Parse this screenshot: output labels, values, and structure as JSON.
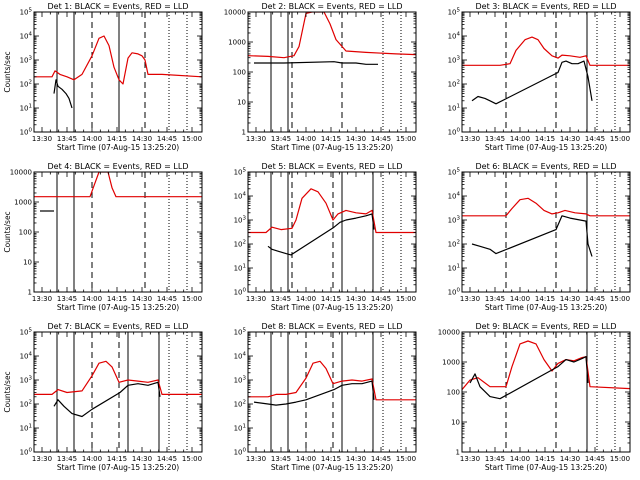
{
  "x_label": "Start Time (07-Aug-15 13:25:20)",
  "x_ticks": [
    "13:30",
    "13:45",
    "14:00",
    "14:15",
    "14:30",
    "14:45",
    "15:00"
  ],
  "x_tick_hours": [
    13.5,
    13.75,
    14.0,
    14.25,
    14.5,
    14.75,
    15.0
  ],
  "colors": {
    "events": "#000000",
    "lld": "#e00000"
  },
  "panels_layout": "3x3 grid",
  "chart_data": [
    {
      "type": "line",
      "title": "Det 1: BLACK = Events, RED = LLD",
      "ylabel": "Counts/sec",
      "y_scale": "log",
      "ylim": [
        1,
        100000
      ],
      "y_ticks": [
        "10^0",
        "10^1",
        "10^2",
        "10^3",
        "10^4",
        "10^5"
      ],
      "y_tick_values": [
        1,
        10,
        100,
        1000,
        10000,
        100000
      ],
      "xlim": [
        13.42,
        15.1
      ],
      "solid_lines": [
        13.65,
        13.82,
        14.27
      ],
      "dashed_lines": [
        14.0,
        14.53
      ],
      "dotted_lines": [
        14.77,
        14.95
      ],
      "events": [
        [
          13.62,
          40
        ],
        [
          13.64,
          150
        ],
        [
          13.66,
          80
        ],
        [
          13.7,
          60
        ],
        [
          13.74,
          40
        ],
        [
          13.77,
          25
        ],
        [
          13.8,
          10
        ]
      ],
      "lld": [
        [
          13.42,
          200
        ],
        [
          13.6,
          200
        ],
        [
          13.63,
          350
        ],
        [
          13.68,
          250
        ],
        [
          13.75,
          200
        ],
        [
          13.82,
          150
        ],
        [
          13.9,
          250
        ],
        [
          14.0,
          1500
        ],
        [
          14.07,
          8000
        ],
        [
          14.12,
          10000
        ],
        [
          14.17,
          4000
        ],
        [
          14.22,
          500
        ],
        [
          14.27,
          150
        ],
        [
          14.31,
          100
        ],
        [
          14.36,
          1200
        ],
        [
          14.4,
          2000
        ],
        [
          14.46,
          1800
        ],
        [
          14.5,
          1500
        ],
        [
          14.53,
          1000
        ],
        [
          14.56,
          250
        ],
        [
          14.7,
          250
        ],
        [
          15.1,
          200
        ]
      ]
    },
    {
      "type": "line",
      "title": "Det 2: BLACK = Events, RED = LLD",
      "ylabel": "",
      "y_scale": "log",
      "ylim": [
        1,
        10000
      ],
      "y_ticks": [
        "1",
        "10",
        "100",
        "1000",
        "10000"
      ],
      "y_tick_values": [
        1,
        10,
        100,
        1000,
        10000
      ],
      "xlim": [
        13.42,
        15.1
      ],
      "solid_lines": [
        13.65,
        13.82
      ],
      "dashed_lines": [
        13.86,
        14.36
      ],
      "dotted_lines": [
        14.77,
        14.95
      ],
      "events": [
        [
          13.48,
          200
        ],
        [
          13.78,
          200
        ],
        [
          14.28,
          220
        ],
        [
          14.36,
          200
        ],
        [
          14.5,
          200
        ],
        [
          14.6,
          180
        ],
        [
          14.72,
          180
        ]
      ],
      "lld": [
        [
          13.42,
          350
        ],
        [
          13.62,
          330
        ],
        [
          13.78,
          300
        ],
        [
          13.88,
          350
        ],
        [
          13.93,
          700
        ],
        [
          14.0,
          9000
        ],
        [
          14.06,
          10000
        ],
        [
          14.18,
          10000
        ],
        [
          14.24,
          4000
        ],
        [
          14.3,
          1200
        ],
        [
          14.4,
          500
        ],
        [
          14.6,
          450
        ],
        [
          14.9,
          400
        ],
        [
          15.1,
          380
        ]
      ]
    },
    {
      "type": "line",
      "title": "Det 3: BLACK = Events, RED = LLD",
      "ylabel": "",
      "y_scale": "log",
      "ylim": [
        1,
        100000
      ],
      "y_ticks": [
        "10^0",
        "10^1",
        "10^2",
        "10^3",
        "10^4",
        "10^5"
      ],
      "y_tick_values": [
        1,
        10,
        100,
        1000,
        10000,
        100000
      ],
      "xlim": [
        13.42,
        15.1
      ],
      "solid_lines": [
        14.67
      ],
      "dashed_lines": [
        13.86,
        14.36
      ],
      "dotted_lines": [
        14.77,
        14.95
      ],
      "events": [
        [
          13.52,
          20
        ],
        [
          13.58,
          30
        ],
        [
          13.65,
          25
        ],
        [
          13.7,
          20
        ],
        [
          13.76,
          15
        ],
        [
          14.38,
          300
        ],
        [
          14.42,
          800
        ],
        [
          14.46,
          900
        ],
        [
          14.52,
          700
        ],
        [
          14.58,
          700
        ],
        [
          14.64,
          900
        ],
        [
          14.68,
          200
        ],
        [
          14.72,
          20
        ]
      ],
      "lld": [
        [
          13.42,
          600
        ],
        [
          13.8,
          600
        ],
        [
          13.9,
          700
        ],
        [
          13.96,
          2500
        ],
        [
          14.05,
          7000
        ],
        [
          14.12,
          9000
        ],
        [
          14.18,
          7000
        ],
        [
          14.24,
          3000
        ],
        [
          14.32,
          1500
        ],
        [
          14.38,
          1200
        ],
        [
          14.42,
          1600
        ],
        [
          14.5,
          1500
        ],
        [
          14.6,
          1300
        ],
        [
          14.66,
          1500
        ],
        [
          14.7,
          600
        ],
        [
          15.1,
          600
        ]
      ]
    },
    {
      "type": "line",
      "title": "Det 4: BLACK = Events, RED = LLD",
      "ylabel": "Counts/sec",
      "y_scale": "log",
      "ylim": [
        1,
        10000
      ],
      "y_ticks": [
        "1",
        "10",
        "100",
        "1000",
        "10000"
      ],
      "y_tick_values": [
        1,
        10,
        100,
        1000,
        10000
      ],
      "xlim": [
        13.42,
        15.1
      ],
      "solid_lines": [
        13.65,
        13.82
      ],
      "dashed_lines": [
        14.0,
        14.53
      ],
      "dotted_lines": [
        14.77,
        14.95
      ],
      "events": [
        [
          13.48,
          500
        ],
        [
          13.62,
          500
        ]
      ],
      "lld": [
        [
          13.42,
          1500
        ],
        [
          13.98,
          1500
        ],
        [
          14.02,
          3500
        ],
        [
          14.07,
          10000
        ],
        [
          14.16,
          10000
        ],
        [
          14.2,
          3000
        ],
        [
          14.24,
          1500
        ],
        [
          15.1,
          1500
        ]
      ]
    },
    {
      "type": "line",
      "title": "Det 5: BLACK = Events, RED = LLD",
      "ylabel": "",
      "y_scale": "log",
      "ylim": [
        1,
        100000
      ],
      "y_ticks": [
        "10^0",
        "10^1",
        "10^2",
        "10^3",
        "10^4",
        "10^5"
      ],
      "y_tick_values": [
        1,
        10,
        100,
        1000,
        10000,
        100000
      ],
      "xlim": [
        13.42,
        15.1
      ],
      "solid_lines": [
        13.65,
        13.82,
        14.36,
        14.67
      ],
      "dashed_lines": [
        13.86,
        14.27
      ],
      "dotted_lines": [
        14.77,
        14.95
      ],
      "events": [
        [
          13.62,
          80
        ],
        [
          13.66,
          60
        ],
        [
          13.72,
          50
        ],
        [
          13.8,
          40
        ],
        [
          13.85,
          35
        ],
        [
          14.28,
          500
        ],
        [
          14.34,
          800
        ],
        [
          14.4,
          1000
        ],
        [
          14.5,
          1200
        ],
        [
          14.6,
          1500
        ],
        [
          14.66,
          1800
        ],
        [
          14.68,
          400
        ]
      ],
      "lld": [
        [
          13.42,
          300
        ],
        [
          13.6,
          300
        ],
        [
          13.66,
          500
        ],
        [
          13.75,
          400
        ],
        [
          13.86,
          450
        ],
        [
          13.9,
          1000
        ],
        [
          13.96,
          8000
        ],
        [
          14.05,
          20000
        ],
        [
          14.12,
          15000
        ],
        [
          14.2,
          5000
        ],
        [
          14.27,
          1000
        ],
        [
          14.32,
          1800
        ],
        [
          14.4,
          2500
        ],
        [
          14.5,
          2000
        ],
        [
          14.6,
          1800
        ],
        [
          14.66,
          2500
        ],
        [
          14.7,
          300
        ],
        [
          15.1,
          300
        ]
      ]
    },
    {
      "type": "line",
      "title": "Det 6: BLACK = Events, RED = LLD",
      "ylabel": "",
      "y_scale": "log",
      "ylim": [
        1,
        100000
      ],
      "y_ticks": [
        "10^0",
        "10^1",
        "10^2",
        "10^3",
        "10^4",
        "10^5"
      ],
      "y_tick_values": [
        1,
        10,
        100,
        1000,
        10000,
        100000
      ],
      "xlim": [
        13.42,
        15.1
      ],
      "solid_lines": [
        14.67
      ],
      "dashed_lines": [
        13.86,
        14.36
      ],
      "dotted_lines": [
        14.77,
        14.95
      ],
      "events": [
        [
          13.52,
          100
        ],
        [
          13.6,
          80
        ],
        [
          13.7,
          60
        ],
        [
          13.76,
          40
        ],
        [
          14.36,
          400
        ],
        [
          14.42,
          1500
        ],
        [
          14.5,
          1200
        ],
        [
          14.6,
          1000
        ],
        [
          14.66,
          900
        ],
        [
          14.68,
          100
        ],
        [
          14.72,
          30
        ]
      ],
      "lld": [
        [
          13.42,
          1500
        ],
        [
          13.86,
          1500
        ],
        [
          13.92,
          3000
        ],
        [
          14.0,
          7000
        ],
        [
          14.08,
          8000
        ],
        [
          14.16,
          5000
        ],
        [
          14.24,
          2500
        ],
        [
          14.32,
          1800
        ],
        [
          14.38,
          2000
        ],
        [
          14.45,
          2500
        ],
        [
          14.55,
          2000
        ],
        [
          14.66,
          1800
        ],
        [
          14.7,
          1500
        ],
        [
          15.1,
          1500
        ]
      ]
    },
    {
      "type": "line",
      "title": "Det 7: BLACK = Events, RED = LLD",
      "ylabel": "Counts/sec",
      "y_scale": "log",
      "ylim": [
        1,
        100000
      ],
      "y_ticks": [
        "10^0",
        "10^1",
        "10^2",
        "10^3",
        "10^4",
        "10^5"
      ],
      "y_tick_values": [
        1,
        10,
        100,
        1000,
        10000,
        100000
      ],
      "xlim": [
        13.42,
        15.1
      ],
      "solid_lines": [
        13.65,
        13.82,
        14.36,
        14.67
      ],
      "dashed_lines": [
        14.0,
        14.27
      ],
      "dotted_lines": [
        14.77,
        14.95
      ],
      "events": [
        [
          13.62,
          80
        ],
        [
          13.66,
          150
        ],
        [
          13.72,
          80
        ],
        [
          13.8,
          40
        ],
        [
          13.9,
          30
        ],
        [
          14.0,
          60
        ],
        [
          14.28,
          300
        ],
        [
          14.36,
          600
        ],
        [
          14.46,
          700
        ],
        [
          14.56,
          600
        ],
        [
          14.66,
          800
        ],
        [
          14.68,
          200
        ]
      ],
      "lld": [
        [
          13.42,
          250
        ],
        [
          13.6,
          250
        ],
        [
          13.66,
          400
        ],
        [
          13.75,
          300
        ],
        [
          13.9,
          350
        ],
        [
          14.0,
          1500
        ],
        [
          14.07,
          5000
        ],
        [
          14.14,
          6000
        ],
        [
          14.2,
          3500
        ],
        [
          14.27,
          800
        ],
        [
          14.36,
          1000
        ],
        [
          14.46,
          900
        ],
        [
          14.56,
          800
        ],
        [
          14.66,
          1000
        ],
        [
          14.7,
          250
        ],
        [
          15.1,
          250
        ]
      ]
    },
    {
      "type": "line",
      "title": "Det 8: BLACK = Events, RED = LLD",
      "ylabel": "",
      "y_scale": "log",
      "ylim": [
        1,
        100000
      ],
      "y_ticks": [
        "10^0",
        "10^1",
        "10^2",
        "10^3",
        "10^4",
        "10^5"
      ],
      "y_tick_values": [
        1,
        10,
        100,
        1000,
        10000,
        100000
      ],
      "xlim": [
        13.42,
        15.1
      ],
      "solid_lines": [
        13.65,
        13.82,
        14.36,
        14.67
      ],
      "dashed_lines": [
        14.0,
        14.27
      ],
      "dotted_lines": [
        14.77,
        14.95
      ],
      "events": [
        [
          13.48,
          120
        ],
        [
          13.62,
          100
        ],
        [
          13.7,
          90
        ],
        [
          13.8,
          100
        ],
        [
          13.9,
          120
        ],
        [
          14.0,
          150
        ],
        [
          14.28,
          400
        ],
        [
          14.36,
          600
        ],
        [
          14.46,
          700
        ],
        [
          14.56,
          700
        ],
        [
          14.66,
          900
        ],
        [
          14.68,
          150
        ]
      ],
      "lld": [
        [
          13.42,
          200
        ],
        [
          13.62,
          200
        ],
        [
          13.7,
          250
        ],
        [
          13.8,
          250
        ],
        [
          13.9,
          300
        ],
        [
          14.0,
          1200
        ],
        [
          14.07,
          5000
        ],
        [
          14.14,
          6000
        ],
        [
          14.2,
          3000
        ],
        [
          14.27,
          700
        ],
        [
          14.36,
          900
        ],
        [
          14.46,
          1000
        ],
        [
          14.56,
          900
        ],
        [
          14.66,
          1100
        ],
        [
          14.7,
          150
        ],
        [
          15.1,
          150
        ]
      ]
    },
    {
      "type": "line",
      "title": "Det 9: BLACK = Events, RED = LLD",
      "ylabel": "",
      "y_scale": "log",
      "ylim": [
        1,
        10000
      ],
      "y_ticks": [
        "1",
        "10",
        "100",
        "1000",
        "10000"
      ],
      "y_tick_values": [
        1,
        10,
        100,
        1000,
        10000
      ],
      "xlim": [
        13.42,
        15.1
      ],
      "solid_lines": [
        14.67
      ],
      "dashed_lines": [
        13.86,
        14.36
      ],
      "dotted_lines": [
        14.77,
        14.95
      ],
      "events": [
        [
          13.5,
          200
        ],
        [
          13.55,
          400
        ],
        [
          13.6,
          150
        ],
        [
          13.7,
          70
        ],
        [
          13.8,
          60
        ],
        [
          14.38,
          700
        ],
        [
          14.46,
          1200
        ],
        [
          14.54,
          1000
        ],
        [
          14.62,
          1300
        ],
        [
          14.66,
          1500
        ],
        [
          14.68,
          200
        ]
      ],
      "lld": [
        [
          13.42,
          120
        ],
        [
          13.5,
          250
        ],
        [
          13.58,
          300
        ],
        [
          13.7,
          150
        ],
        [
          13.86,
          150
        ],
        [
          13.92,
          700
        ],
        [
          14.0,
          4000
        ],
        [
          14.08,
          5000
        ],
        [
          14.16,
          4000
        ],
        [
          14.24,
          1200
        ],
        [
          14.32,
          500
        ],
        [
          14.38,
          900
        ],
        [
          14.46,
          1200
        ],
        [
          14.54,
          1100
        ],
        [
          14.62,
          1400
        ],
        [
          14.66,
          1500
        ],
        [
          14.7,
          150
        ],
        [
          15.1,
          130
        ]
      ]
    }
  ]
}
